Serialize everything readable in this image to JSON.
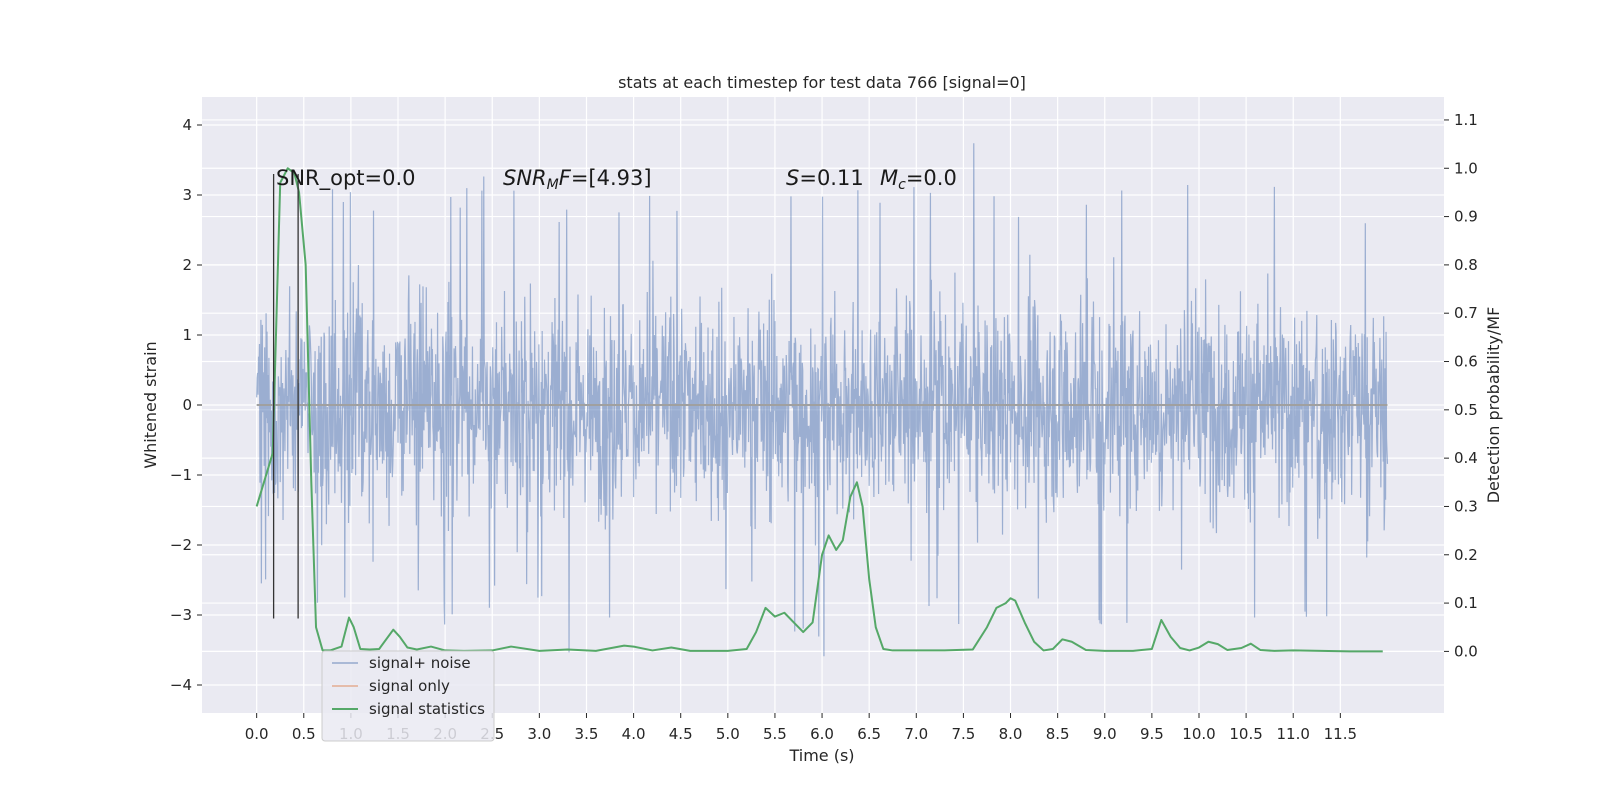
{
  "chart_data": {
    "type": "line",
    "title": "stats at each timestep for test data 766 [signal=0]",
    "xlabel": "Time (s)",
    "ylabel": "Whitened strain",
    "y2label": "Detection probability/MF",
    "xlim": [
      -0.58,
      12.6
    ],
    "ylim": [
      -4.4,
      4.4
    ],
    "y2lim": [
      -0.1275,
      1.1475
    ],
    "x_ticks": [
      "0.0",
      "0.5",
      "1.0",
      "1.5",
      "2.0",
      "2.5",
      "3.0",
      "3.5",
      "4.0",
      "4.5",
      "5.0",
      "5.5",
      "6.0",
      "6.5",
      "7.0",
      "7.5",
      "8.0",
      "8.5",
      "9.0",
      "9.5",
      "10.0",
      "10.5",
      "11.0",
      "11.5"
    ],
    "y_ticks": [
      "−4",
      "−3",
      "−2",
      "−1",
      "0",
      "1",
      "2",
      "3",
      "4"
    ],
    "y2_ticks": [
      "0.0",
      "0.1",
      "0.2",
      "0.3",
      "0.4",
      "0.5",
      "0.6",
      "0.7",
      "0.8",
      "0.9",
      "1.0",
      "1.1"
    ],
    "annotations": {
      "snr_opt": "SNR_opt=0.0",
      "snr_mf_label": "SNR",
      "snr_mf_sub": "M",
      "snr_mf_rest": "F=[4.93]",
      "s_var": "S",
      "s_val": "=0.11",
      "mc_var": "M",
      "mc_sub": "c",
      "mc_val": "=0.0"
    },
    "noise_envelope": {
      "x": [
        0.0,
        0.5,
        1.0,
        1.5,
        2.0,
        2.5,
        3.0,
        3.5,
        4.0,
        4.5,
        5.0,
        5.5,
        6.0,
        6.5,
        7.0,
        7.5,
        8.0,
        8.5,
        9.0,
        9.5,
        10.0,
        10.5,
        11.0,
        11.5,
        12.0
      ],
      "upper": [
        2.8,
        3.2,
        3.1,
        3.3,
        3.1,
        3.4,
        3.1,
        3.2,
        3.2,
        3.1,
        3.3,
        3.2,
        3.3,
        3.2,
        3.3,
        4.1,
        3.0,
        3.1,
        3.3,
        3.1,
        3.2,
        3.2,
        3.2,
        3.7,
        2.3
      ],
      "lower": [
        -2.7,
        -3.1,
        -2.9,
        -2.8,
        -3.2,
        -2.9,
        -3.0,
        -3.9,
        -3.1,
        -3.3,
        -2.8,
        -3.1,
        -3.7,
        -3.5,
        -3.0,
        -3.2,
        -3.0,
        -3.1,
        -3.3,
        -3.5,
        -3.2,
        -3.1,
        -3.1,
        -3.0,
        -1.7
      ]
    },
    "series": [
      {
        "name": "signal+ noise",
        "color": "#4c72b0"
      },
      {
        "name": "signal only",
        "color": "#dd8452",
        "x": [
          0.0,
          12.0
        ],
        "y": [
          0.0,
          0.0
        ]
      },
      {
        "name": "signal statistics",
        "color": "#55a868",
        "x": [
          0.0,
          0.17,
          0.25,
          0.33,
          0.4,
          0.45,
          0.52,
          0.58,
          0.63,
          0.7,
          0.78,
          0.9,
          0.98,
          1.03,
          1.1,
          1.2,
          1.3,
          1.45,
          1.52,
          1.6,
          1.7,
          1.85,
          2.0,
          2.2,
          2.5,
          2.7,
          3.0,
          3.3,
          3.6,
          3.9,
          4.0,
          4.2,
          4.4,
          4.6,
          4.8,
          5.0,
          5.2,
          5.3,
          5.4,
          5.5,
          5.6,
          5.7,
          5.8,
          5.9,
          6.0,
          6.07,
          6.15,
          6.22,
          6.3,
          6.37,
          6.43,
          6.5,
          6.57,
          6.65,
          6.75,
          7.0,
          7.3,
          7.6,
          7.75,
          7.85,
          7.95,
          8.0,
          8.05,
          8.15,
          8.25,
          8.35,
          8.45,
          8.55,
          8.65,
          8.8,
          9.0,
          9.3,
          9.5,
          9.6,
          9.7,
          9.8,
          9.9,
          10.0,
          10.1,
          10.2,
          10.3,
          10.45,
          10.55,
          10.65,
          10.8,
          11.0,
          11.3,
          11.6,
          11.8,
          11.95
        ],
        "y": [
          0.3,
          0.41,
          0.97,
          1.0,
          0.99,
          0.95,
          0.8,
          0.35,
          0.05,
          0.002,
          0.002,
          0.01,
          0.07,
          0.05,
          0.005,
          0.004,
          0.005,
          0.045,
          0.03,
          0.008,
          0.004,
          0.01,
          0.002,
          0.001,
          0.002,
          0.01,
          0.001,
          0.004,
          0.001,
          0.012,
          0.01,
          0.002,
          0.008,
          0.001,
          0.001,
          0.001,
          0.005,
          0.04,
          0.09,
          0.072,
          0.08,
          0.06,
          0.04,
          0.06,
          0.2,
          0.24,
          0.21,
          0.23,
          0.32,
          0.35,
          0.3,
          0.15,
          0.05,
          0.005,
          0.002,
          0.002,
          0.002,
          0.004,
          0.05,
          0.09,
          0.1,
          0.11,
          0.105,
          0.06,
          0.02,
          0.002,
          0.005,
          0.025,
          0.02,
          0.003,
          0.001,
          0.001,
          0.005,
          0.065,
          0.03,
          0.007,
          0.002,
          0.008,
          0.02,
          0.015,
          0.003,
          0.007,
          0.016,
          0.003,
          0.001,
          0.002,
          0.001,
          0.0,
          0.0,
          0.0
        ]
      }
    ],
    "vlines": [
      {
        "x": 0.18,
        "y0": -3.05,
        "y1": 3.3
      },
      {
        "x": 0.44,
        "y0": -3.05,
        "y1": 3.3
      }
    ],
    "legend": {
      "placement": "lower-left",
      "entries": [
        "signal+ noise",
        "signal only",
        "signal statistics"
      ]
    },
    "grid": true
  }
}
